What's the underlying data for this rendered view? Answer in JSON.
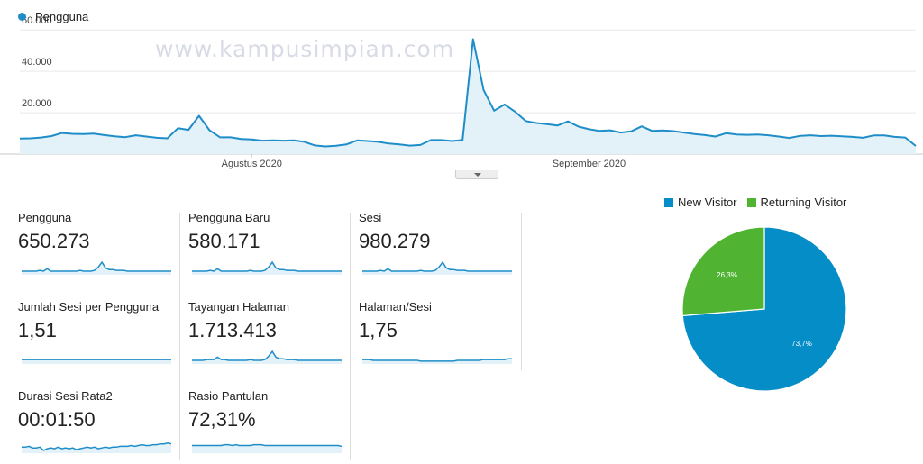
{
  "watermark": "www.kampusimpian.com",
  "colors": {
    "line": "#1f8ec8",
    "fill": "#e3f1f9",
    "new_visitor": "#058dc7",
    "returning_visitor": "#50b432",
    "grid": "#e9e9e9"
  },
  "chart_data": [
    {
      "type": "area",
      "legend": [
        "Pengguna"
      ],
      "legend_placement": "top-left",
      "y_ticks": [
        "20.000",
        "40.000",
        "60.000"
      ],
      "x_ticks": [
        "Agustus 2020",
        "September 2020"
      ],
      "x_tick_index": [
        22,
        54
      ],
      "ylim": [
        0,
        64000
      ],
      "grid": true,
      "series": [
        {
          "name": "Pengguna",
          "values": [
            7500,
            7600,
            8000,
            8700,
            10200,
            9800,
            9700,
            9900,
            9200,
            8600,
            8200,
            9100,
            8500,
            7900,
            7600,
            12500,
            11700,
            18500,
            11500,
            8100,
            8100,
            7300,
            7100,
            6500,
            6600,
            6500,
            6600,
            5900,
            4200,
            3700,
            4000,
            4700,
            6600,
            6300,
            5900,
            5100,
            4700,
            4100,
            4400,
            6800,
            6800,
            6300,
            6800,
            55500,
            31000,
            21000,
            24000,
            20400,
            16000,
            15000,
            14500,
            13800,
            15800,
            13300,
            12000,
            11200,
            11500,
            10400,
            11000,
            13400,
            11200,
            11400,
            11100,
            10400,
            9700,
            9200,
            8500,
            10100,
            9500,
            9300,
            9500,
            9100,
            8500,
            7800,
            8800,
            9100,
            8700,
            8900,
            8600,
            8300,
            7900,
            9000,
            9000,
            8300,
            8000,
            3900
          ]
        }
      ]
    },
    {
      "type": "line",
      "name": "Pengguna",
      "values": [
        9,
        9,
        9,
        9,
        9,
        10,
        9,
        12,
        9,
        9,
        9,
        9,
        9,
        9,
        9,
        9,
        10,
        9,
        9,
        9,
        10,
        14,
        20,
        13,
        11,
        11,
        10,
        10,
        10,
        9,
        9,
        9,
        9,
        9,
        9,
        9,
        9,
        9,
        9,
        9,
        9,
        9
      ]
    },
    {
      "type": "line",
      "name": "Pengguna Baru",
      "values": [
        9,
        9,
        9,
        9,
        9,
        10,
        9,
        12,
        9,
        9,
        9,
        9,
        9,
        9,
        9,
        9,
        10,
        9,
        9,
        9,
        10,
        14,
        20,
        13,
        11,
        11,
        10,
        10,
        10,
        9,
        9,
        9,
        9,
        9,
        9,
        9,
        9,
        9,
        9,
        9,
        9,
        9
      ]
    },
    {
      "type": "line",
      "name": "Sesi",
      "values": [
        9,
        9,
        9,
        9,
        9,
        10,
        9,
        12,
        9,
        9,
        9,
        9,
        9,
        9,
        9,
        9,
        10,
        9,
        9,
        9,
        10,
        14,
        20,
        13,
        11,
        11,
        10,
        10,
        10,
        9,
        9,
        9,
        9,
        9,
        9,
        9,
        9,
        9,
        9,
        9,
        9,
        9
      ]
    },
    {
      "type": "line",
      "name": "Jumlah Sesi per Pengguna",
      "values": [
        10,
        10,
        10,
        10,
        10,
        10,
        10,
        10,
        10,
        10,
        10,
        10,
        10,
        10,
        10,
        10,
        10,
        10,
        10,
        10,
        10,
        10,
        10,
        10,
        10,
        10,
        10,
        10,
        10,
        10,
        10,
        10,
        10,
        10,
        10,
        10,
        10,
        10,
        10,
        10,
        10,
        10
      ]
    },
    {
      "type": "line",
      "name": "Tayangan Halaman",
      "values": [
        9,
        9,
        9,
        9,
        10,
        10,
        10,
        13,
        10,
        10,
        9,
        9,
        9,
        9,
        9,
        9,
        10,
        9,
        9,
        9,
        10,
        14,
        20,
        13,
        11,
        11,
        10,
        10,
        10,
        9,
        9,
        9,
        9,
        9,
        9,
        9,
        9,
        9,
        9,
        9,
        9,
        9
      ]
    },
    {
      "type": "line",
      "name": "Halaman/Sesi",
      "values": [
        10,
        10,
        10,
        9,
        9,
        9,
        9,
        9,
        9,
        9,
        9,
        9,
        9,
        9,
        9,
        9,
        8,
        8,
        8,
        8,
        8,
        8,
        8,
        8,
        8,
        8,
        9,
        9,
        9,
        9,
        9,
        9,
        9,
        10,
        10,
        10,
        10,
        10,
        10,
        10,
        11,
        11
      ]
    },
    {
      "type": "line",
      "name": "Durasi Sesi Rata2",
      "values": [
        12,
        12,
        13,
        11,
        11,
        12,
        8,
        10,
        11,
        10,
        12,
        10,
        11,
        10,
        11,
        9,
        10,
        11,
        12,
        11,
        12,
        10,
        11,
        12,
        11,
        12,
        12,
        13,
        13,
        13,
        14,
        13,
        14,
        15,
        14,
        14,
        15,
        15,
        16,
        16,
        17,
        16
      ]
    },
    {
      "type": "line",
      "name": "Rasio Pantulan",
      "values": [
        14,
        14,
        14,
        14,
        14,
        14,
        14,
        14,
        14,
        15,
        15,
        14,
        15,
        14,
        14,
        14,
        14,
        15,
        15,
        15,
        14,
        14,
        14,
        14,
        14,
        14,
        14,
        14,
        14,
        14,
        14,
        14,
        14,
        14,
        14,
        14,
        14,
        14,
        14,
        14,
        14,
        13
      ]
    },
    {
      "type": "pie",
      "legend_placement": "top",
      "slices": [
        {
          "name": "New Visitor",
          "value": 73.7,
          "label": "73,7%",
          "color": "#058dc7"
        },
        {
          "name": "Returning Visitor",
          "value": 26.3,
          "label": "26,3%",
          "color": "#50b432"
        }
      ]
    }
  ],
  "metrics": [
    {
      "label": "Pengguna",
      "value": "650.273"
    },
    {
      "label": "Pengguna Baru",
      "value": "580.171"
    },
    {
      "label": "Sesi",
      "value": "980.279"
    },
    {
      "label": "Jumlah Sesi per Pengguna",
      "value": "1,51"
    },
    {
      "label": "Tayangan Halaman",
      "value": "1.713.413"
    },
    {
      "label": "Halaman/Sesi",
      "value": "1,75"
    },
    {
      "label": "Durasi Sesi Rata2",
      "value": "00:01:50"
    },
    {
      "label": "Rasio Pantulan",
      "value": "72,31%"
    }
  ]
}
